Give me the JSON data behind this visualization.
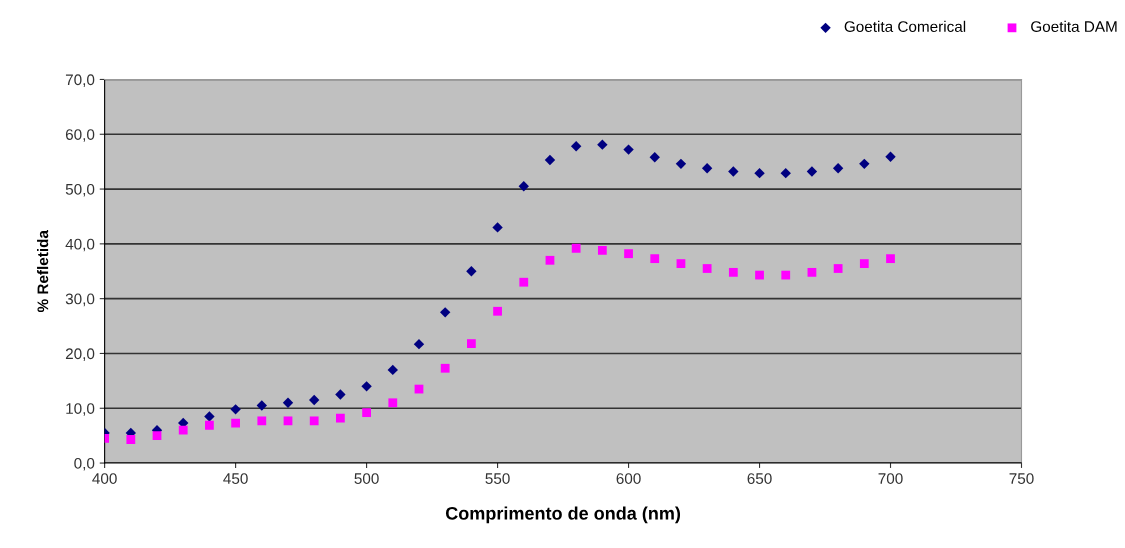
{
  "chart_data": {
    "type": "scatter",
    "xlabel": "Comprimento de onda (nm)",
    "ylabel": "% Refletida",
    "x": [
      400,
      410,
      420,
      430,
      440,
      450,
      460,
      470,
      480,
      490,
      500,
      510,
      520,
      530,
      540,
      550,
      560,
      570,
      580,
      590,
      600,
      610,
      620,
      630,
      640,
      650,
      660,
      670,
      680,
      690,
      700
    ],
    "series": [
      {
        "name": "Goetita Comerical",
        "color": "#000080",
        "marker": "diamond",
        "values": [
          5.5,
          5.5,
          6.0,
          7.3,
          8.5,
          9.8,
          10.5,
          11.0,
          11.5,
          12.5,
          14.0,
          17.0,
          21.7,
          27.5,
          35.0,
          43.0,
          50.5,
          55.3,
          57.8,
          58.1,
          57.2,
          55.8,
          54.6,
          53.8,
          53.2,
          52.9,
          52.9,
          53.2,
          53.8,
          54.6,
          55.9
        ]
      },
      {
        "name": "Goetita DAM",
        "color": "#ff00ff",
        "marker": "square",
        "values": [
          4.5,
          4.3,
          5.0,
          6.0,
          6.9,
          7.3,
          7.7,
          7.7,
          7.7,
          8.2,
          9.2,
          11.0,
          13.5,
          17.3,
          21.8,
          27.7,
          33.0,
          37.0,
          39.2,
          38.8,
          38.2,
          37.3,
          36.4,
          35.5,
          34.8,
          34.3,
          34.3,
          34.8,
          35.5,
          36.4,
          37.3
        ]
      }
    ],
    "xlim": [
      400,
      750
    ],
    "xticks": [
      400,
      450,
      500,
      550,
      600,
      650,
      700,
      750
    ],
    "ylim": [
      0,
      70
    ],
    "yticks": [
      {
        "value": 0,
        "label": "0,0"
      },
      {
        "value": 10,
        "label": "10,0"
      },
      {
        "value": 20,
        "label": "20,0"
      },
      {
        "value": 30,
        "label": "30,0"
      },
      {
        "value": 40,
        "label": "40,0"
      },
      {
        "value": 50,
        "label": "50,0"
      },
      {
        "value": 60,
        "label": "60,0"
      },
      {
        "value": 70,
        "label": "70,0"
      }
    ],
    "grid": "y",
    "legend": "top right"
  }
}
